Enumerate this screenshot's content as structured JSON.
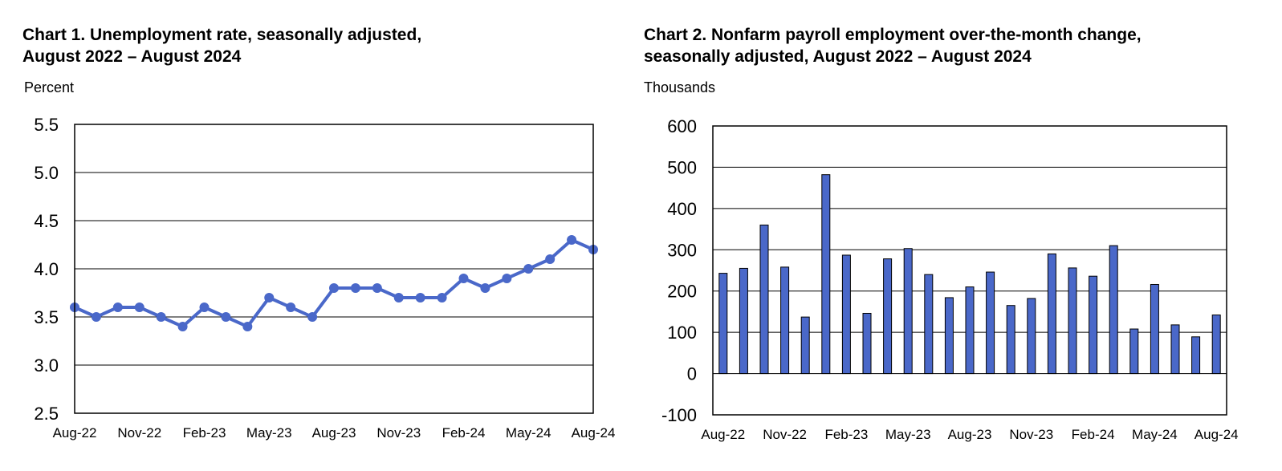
{
  "chart_data": [
    {
      "type": "line",
      "title_line1": "Chart 1. Unemployment rate, seasonally adjusted,",
      "title_line2": "August 2022 – August 2024",
      "ylabel": "Percent",
      "xlabel": "",
      "ylim": [
        2.5,
        5.5
      ],
      "yticks": [
        "2.5",
        "3.0",
        "3.5",
        "4.0",
        "4.5",
        "5.0",
        "5.5"
      ],
      "xtick_labels": [
        "Aug-22",
        "Nov-22",
        "Feb-23",
        "May-23",
        "Aug-23",
        "Nov-23",
        "Feb-24",
        "May-24",
        "Aug-24"
      ],
      "grid": true,
      "series_color": "#4a68c9",
      "categories": [
        "Aug-22",
        "Sep-22",
        "Oct-22",
        "Nov-22",
        "Dec-22",
        "Jan-23",
        "Feb-23",
        "Mar-23",
        "Apr-23",
        "May-23",
        "Jun-23",
        "Jul-23",
        "Aug-23",
        "Sep-23",
        "Oct-23",
        "Nov-23",
        "Dec-23",
        "Jan-24",
        "Feb-24",
        "Mar-24",
        "Apr-24",
        "May-24",
        "Jun-24",
        "Jul-24",
        "Aug-24"
      ],
      "values": [
        3.6,
        3.5,
        3.6,
        3.6,
        3.5,
        3.4,
        3.6,
        3.5,
        3.4,
        3.7,
        3.6,
        3.5,
        3.8,
        3.8,
        3.8,
        3.7,
        3.7,
        3.7,
        3.9,
        3.8,
        3.9,
        4.0,
        4.1,
        4.3,
        4.2
      ]
    },
    {
      "type": "bar",
      "title_line1": "Chart 2. Nonfarm payroll employment over-the-month change,",
      "title_line2": "seasonally adjusted, August 2022 – August 2024",
      "ylabel": "Thousands",
      "xlabel": "",
      "ylim": [
        -100,
        600
      ],
      "yticks": [
        "-100",
        "0",
        "100",
        "200",
        "300",
        "400",
        "500",
        "600"
      ],
      "xtick_labels": [
        "Aug-22",
        "Nov-22",
        "Feb-23",
        "May-23",
        "Aug-23",
        "Nov-23",
        "Feb-24",
        "May-24",
        "Aug-24"
      ],
      "grid": true,
      "series_color": "#4a68c9",
      "categories": [
        "Aug-22",
        "Sep-22",
        "Oct-22",
        "Nov-22",
        "Dec-22",
        "Jan-23",
        "Feb-23",
        "Mar-23",
        "Apr-23",
        "May-23",
        "Jun-23",
        "Jul-23",
        "Aug-23",
        "Sep-23",
        "Oct-23",
        "Nov-23",
        "Dec-23",
        "Jan-24",
        "Feb-24",
        "Mar-24",
        "Apr-24",
        "May-24",
        "Jun-24",
        "Jul-24",
        "Aug-24"
      ],
      "values": [
        243,
        255,
        360,
        258,
        137,
        482,
        287,
        146,
        278,
        303,
        240,
        184,
        210,
        246,
        165,
        182,
        290,
        256,
        236,
        310,
        108,
        216,
        118,
        89,
        142
      ]
    }
  ]
}
